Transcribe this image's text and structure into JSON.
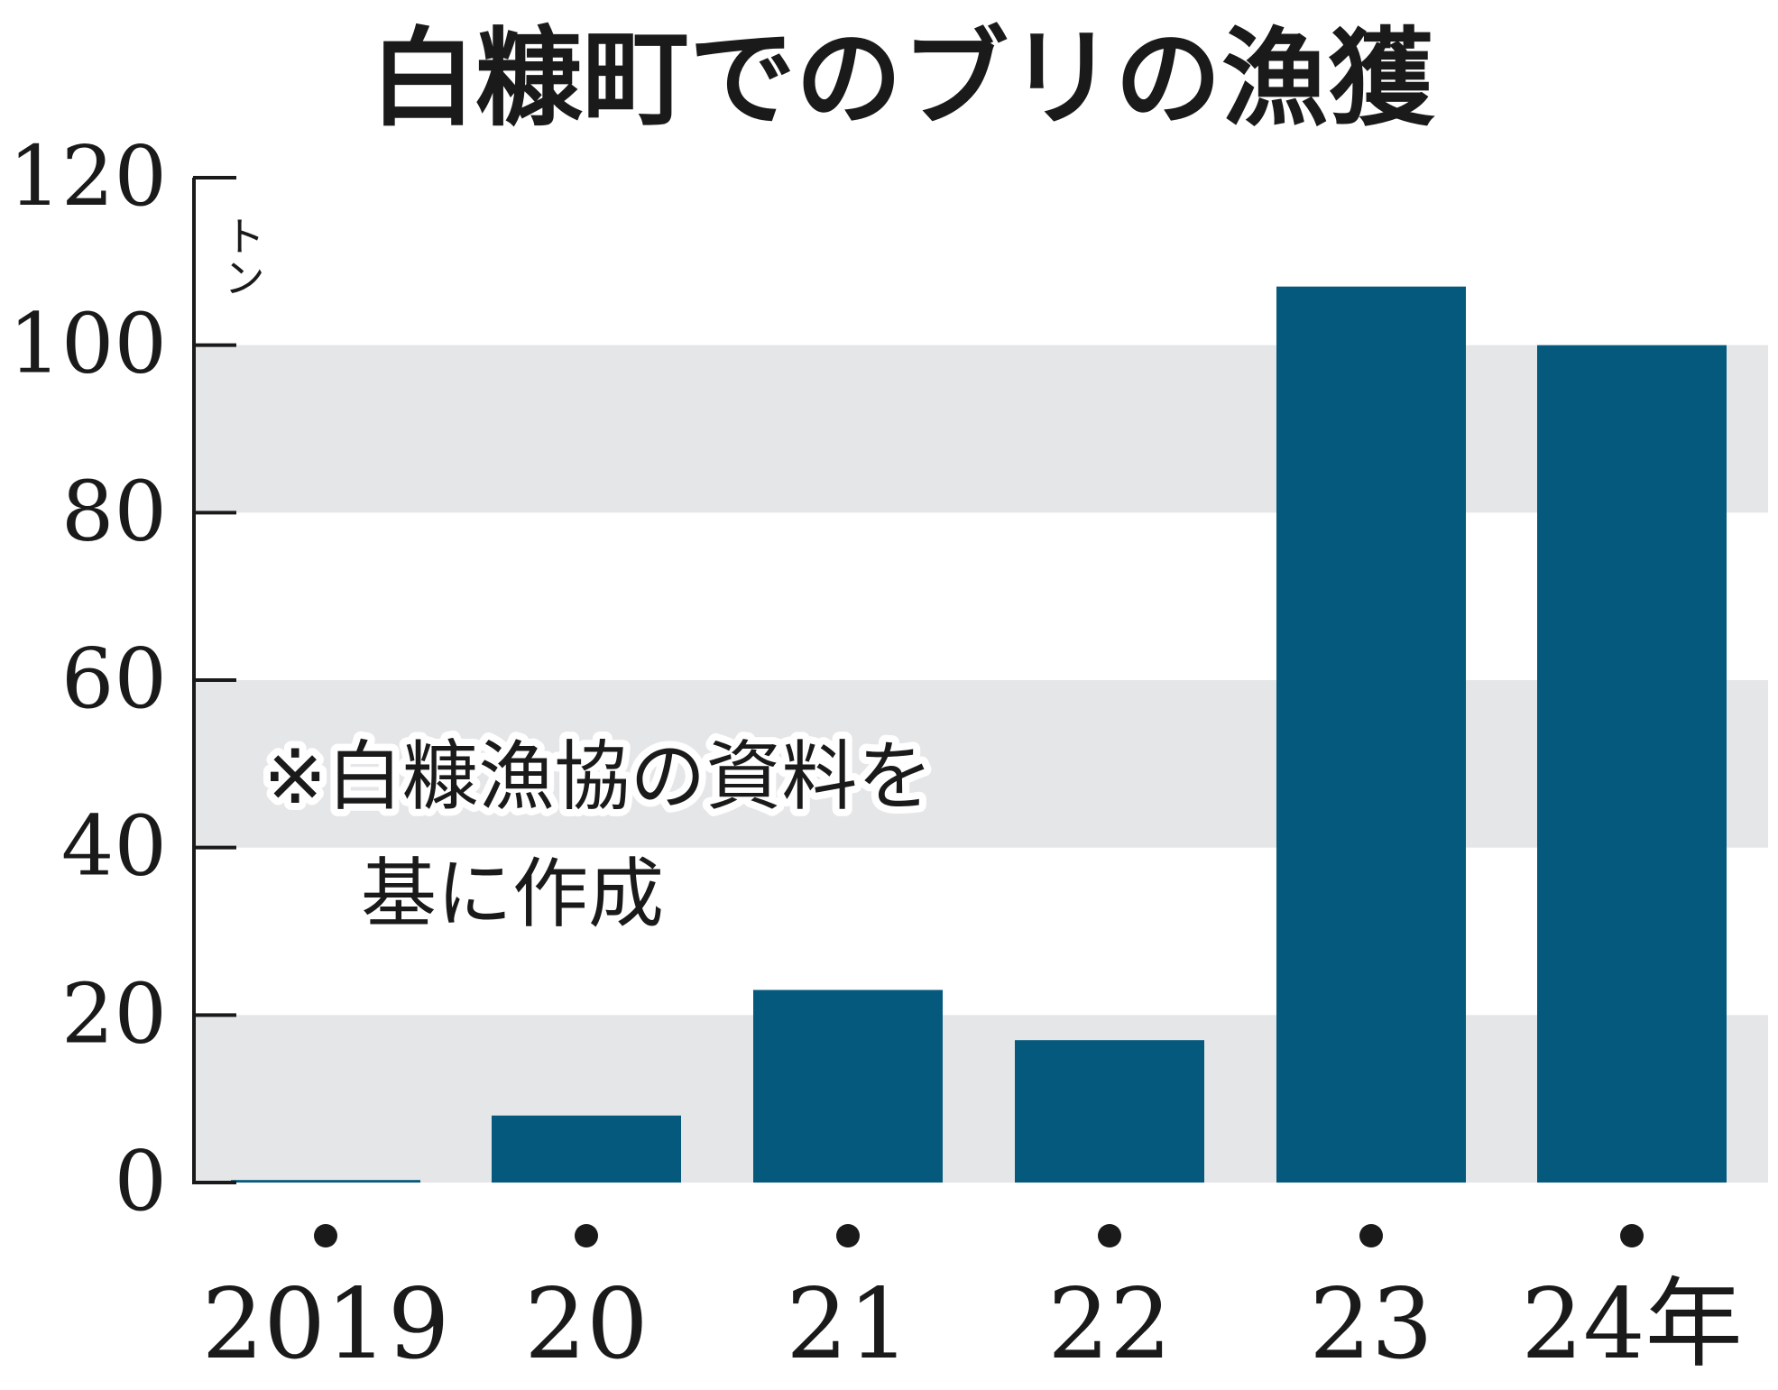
{
  "chart_data": {
    "type": "bar",
    "title": "白糠町でのブリの漁獲",
    "ylabel": "トン",
    "categories": [
      "2019",
      "20",
      "21",
      "22",
      "23",
      "24年"
    ],
    "values": [
      0.3,
      8,
      23,
      17,
      107,
      100
    ],
    "ylim": [
      0,
      120
    ],
    "yticks": [
      "0",
      "20",
      "40",
      "60",
      "80",
      "100",
      "120"
    ],
    "note_lines": [
      "※白糠漁協の資料を",
      "基に作成"
    ],
    "grid": "alternating horizontal bands",
    "colors": {
      "bar": "#04597d",
      "band": "#e5e6e8",
      "axis": "#1a1a1a"
    }
  }
}
